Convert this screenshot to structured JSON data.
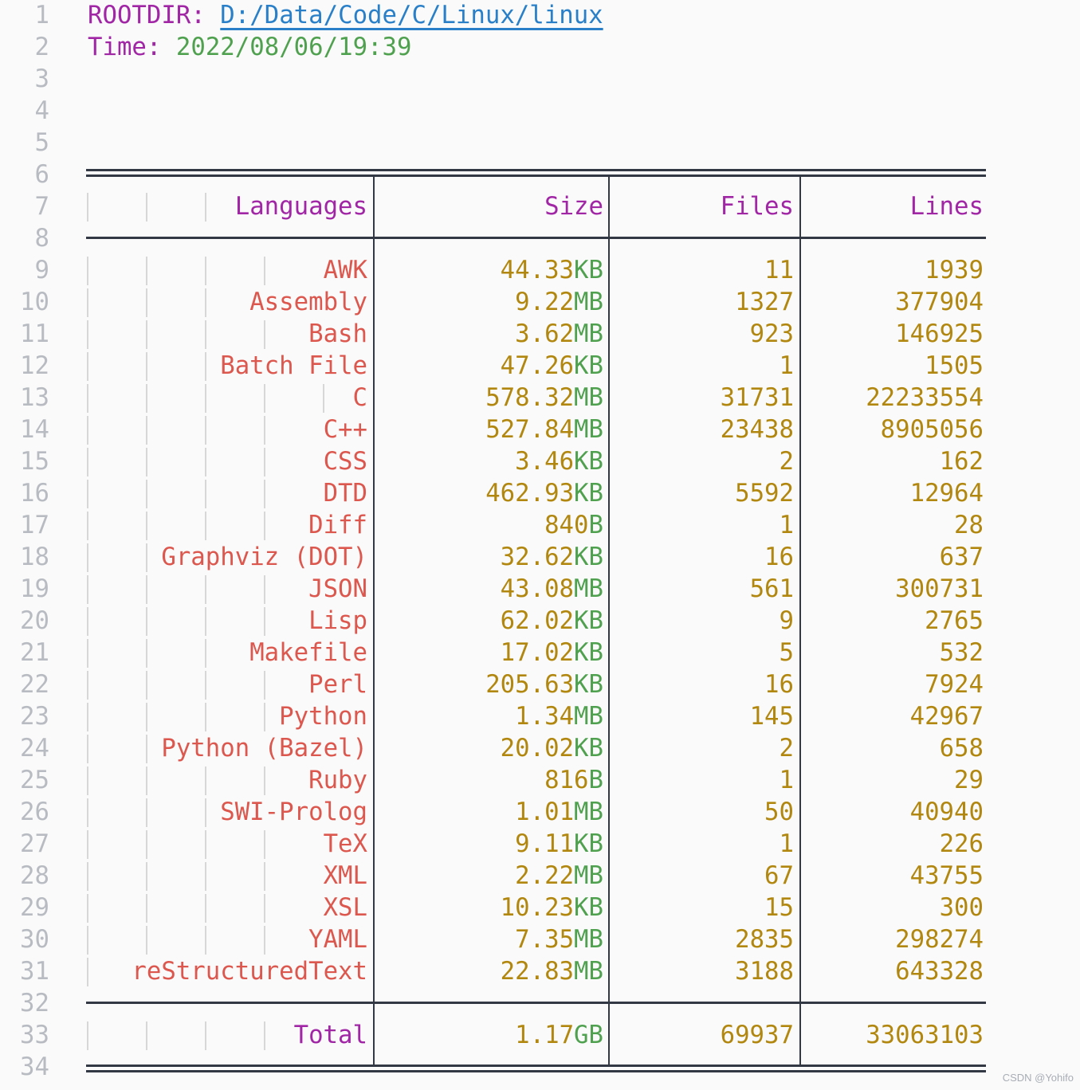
{
  "editor": {
    "line1": {
      "label": "ROOTDIR:",
      "value": "D:/Data/Code/C/Linux/linux"
    },
    "line2": {
      "label": "Time:",
      "value": "2022/08/06/19:39"
    },
    "line_numbers": [
      "1",
      "2",
      "3",
      "4",
      "5",
      "6",
      "7",
      "8",
      "9",
      "10",
      "11",
      "12",
      "13",
      "14",
      "15",
      "16",
      "17",
      "18",
      "19",
      "20",
      "21",
      "22",
      "23",
      "24",
      "25",
      "26",
      "27",
      "28",
      "29",
      "30",
      "31",
      "32",
      "33",
      "34"
    ]
  },
  "table": {
    "headers": {
      "languages": "Languages",
      "size": "Size",
      "files": "Files",
      "lines": "Lines"
    },
    "rows": [
      {
        "language": "AWK",
        "size_value": "44.33",
        "size_unit": "KB",
        "files": "11",
        "lines": "1939"
      },
      {
        "language": "Assembly",
        "size_value": "9.22",
        "size_unit": "MB",
        "files": "1327",
        "lines": "377904"
      },
      {
        "language": "Bash",
        "size_value": "3.62",
        "size_unit": "MB",
        "files": "923",
        "lines": "146925"
      },
      {
        "language": "Batch File",
        "size_value": "47.26",
        "size_unit": "KB",
        "files": "1",
        "lines": "1505"
      },
      {
        "language": "C",
        "size_value": "578.32",
        "size_unit": "MB",
        "files": "31731",
        "lines": "22233554"
      },
      {
        "language": "C++",
        "size_value": "527.84",
        "size_unit": "MB",
        "files": "23438",
        "lines": "8905056"
      },
      {
        "language": "CSS",
        "size_value": "3.46",
        "size_unit": "KB",
        "files": "2",
        "lines": "162"
      },
      {
        "language": "DTD",
        "size_value": "462.93",
        "size_unit": "KB",
        "files": "5592",
        "lines": "12964"
      },
      {
        "language": "Diff",
        "size_value": "840",
        "size_unit": "B",
        "files": "1",
        "lines": "28"
      },
      {
        "language": "Graphviz (DOT)",
        "size_value": "32.62",
        "size_unit": "KB",
        "files": "16",
        "lines": "637"
      },
      {
        "language": "JSON",
        "size_value": "43.08",
        "size_unit": "MB",
        "files": "561",
        "lines": "300731"
      },
      {
        "language": "Lisp",
        "size_value": "62.02",
        "size_unit": "KB",
        "files": "9",
        "lines": "2765"
      },
      {
        "language": "Makefile",
        "size_value": "17.02",
        "size_unit": "KB",
        "files": "5",
        "lines": "532"
      },
      {
        "language": "Perl",
        "size_value": "205.63",
        "size_unit": "KB",
        "files": "16",
        "lines": "7924"
      },
      {
        "language": "Python",
        "size_value": "1.34",
        "size_unit": "MB",
        "files": "145",
        "lines": "42967"
      },
      {
        "language": "Python (Bazel)",
        "size_value": "20.02",
        "size_unit": "KB",
        "files": "2",
        "lines": "658"
      },
      {
        "language": "Ruby",
        "size_value": "816",
        "size_unit": "B",
        "files": "1",
        "lines": "29"
      },
      {
        "language": "SWI-Prolog",
        "size_value": "1.01",
        "size_unit": "MB",
        "files": "50",
        "lines": "40940"
      },
      {
        "language": "TeX",
        "size_value": "9.11",
        "size_unit": "KB",
        "files": "1",
        "lines": "226"
      },
      {
        "language": "XML",
        "size_value": "2.22",
        "size_unit": "MB",
        "files": "67",
        "lines": "43755"
      },
      {
        "language": "XSL",
        "size_value": "10.23",
        "size_unit": "KB",
        "files": "15",
        "lines": "300"
      },
      {
        "language": "YAML",
        "size_value": "7.35",
        "size_unit": "MB",
        "files": "2835",
        "lines": "298274"
      },
      {
        "language": "reStructuredText",
        "size_value": "22.83",
        "size_unit": "MB",
        "files": "3188",
        "lines": "643328"
      }
    ],
    "total": {
      "label": "Total",
      "size_value": "1.17",
      "size_unit": "GB",
      "files": "69937",
      "lines": "33063103"
    }
  },
  "watermark": "CSDN @Yohifo",
  "colors": {
    "background": "#fafafa",
    "purple": "#a126a6",
    "red": "#dc574d",
    "green": "#50a14f",
    "gold": "#b1870f",
    "blue_link": "#2980c8",
    "rule": "#333845",
    "indent_guide": "#d7d7d7",
    "line_number": "#b8bcc2",
    "watermark": "#a8adb5"
  }
}
